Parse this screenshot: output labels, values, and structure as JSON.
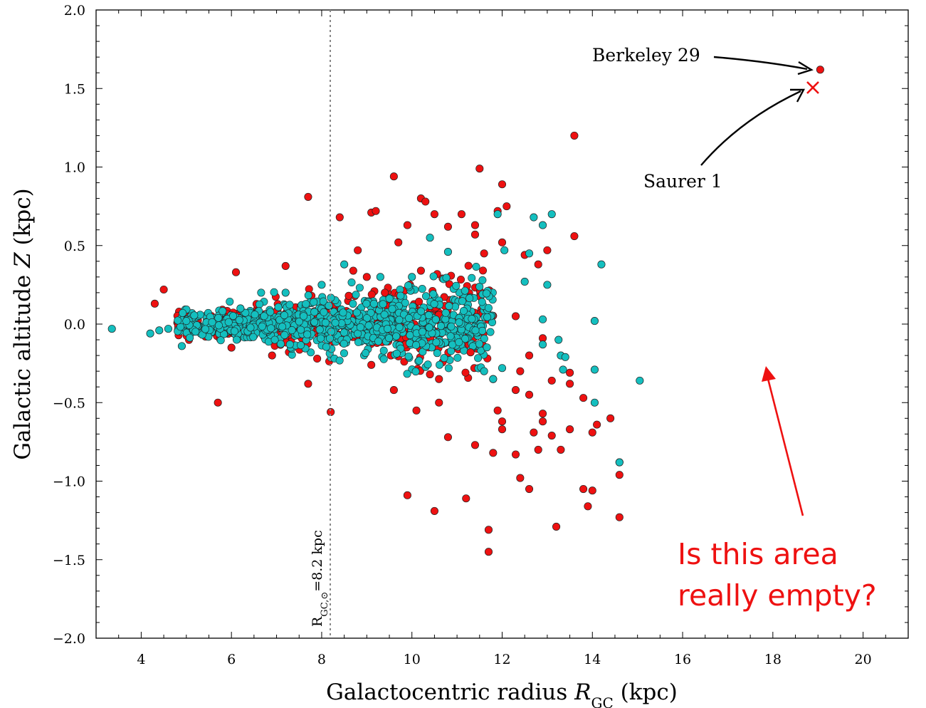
{
  "chart_data": {
    "type": "scatter",
    "xlabel": "Galactocentric radius R_GC (kpc)",
    "ylabel": "Galactic altitude Z (kpc)",
    "xlim": [
      3,
      21
    ],
    "ylim": [
      -2.0,
      2.0
    ],
    "x_ticks": [
      "4",
      "6",
      "8",
      "10",
      "12",
      "14",
      "16",
      "18",
      "20"
    ],
    "y_ticks": [
      "2.0",
      "1.5",
      "1.0",
      "0.5",
      "0.0",
      "−0.5",
      "−1.0",
      "−1.5",
      "−2.0"
    ],
    "grid": false,
    "reference_line": {
      "x": 8.2,
      "label": "R_GC,⊙=8.2 kpc"
    },
    "series": [
      {
        "color": "#ee1111",
        "points": [
          [
            5.7,
            -0.5
          ],
          [
            4.5,
            0.22
          ],
          [
            4.3,
            0.13
          ],
          [
            7.7,
            0.81
          ],
          [
            8.2,
            -0.56
          ],
          [
            8.4,
            0.68
          ],
          [
            9.6,
            0.94
          ],
          [
            10.2,
            0.8
          ],
          [
            10.3,
            0.78
          ],
          [
            11.5,
            0.99
          ],
          [
            12.0,
            0.89
          ],
          [
            13.6,
            1.2
          ],
          [
            9.1,
            0.71
          ],
          [
            9.2,
            0.72
          ],
          [
            10.5,
            0.7
          ],
          [
            10.8,
            0.62
          ],
          [
            11.1,
            0.7
          ],
          [
            11.4,
            0.63
          ],
          [
            11.9,
            0.72
          ],
          [
            12.1,
            0.75
          ],
          [
            12.5,
            0.44
          ],
          [
            13.6,
            0.56
          ],
          [
            12.8,
            0.38
          ],
          [
            13.0,
            0.47
          ],
          [
            6.1,
            0.33
          ],
          [
            7.2,
            0.37
          ],
          [
            8.8,
            0.47
          ],
          [
            9.7,
            0.52
          ],
          [
            9.9,
            0.63
          ],
          [
            11.4,
            0.57
          ],
          [
            10.6,
            -0.5
          ],
          [
            11.4,
            -0.77
          ],
          [
            12.0,
            -0.67
          ],
          [
            12.8,
            -0.8
          ],
          [
            13.5,
            -0.67
          ],
          [
            14.4,
            -0.6
          ],
          [
            14.6,
            -0.88
          ],
          [
            14.6,
            -0.96
          ],
          [
            14.6,
            -1.23
          ],
          [
            14.0,
            -1.06
          ],
          [
            13.3,
            -0.8
          ],
          [
            12.4,
            -0.98
          ],
          [
            12.6,
            -1.05
          ],
          [
            11.8,
            -0.82
          ],
          [
            11.7,
            -1.31
          ],
          [
            11.7,
            -1.45
          ],
          [
            10.5,
            -1.19
          ],
          [
            9.9,
            -1.09
          ],
          [
            11.2,
            -1.11
          ],
          [
            13.2,
            -1.29
          ],
          [
            13.9,
            -1.16
          ],
          [
            13.8,
            -1.05
          ],
          [
            14.0,
            -0.69
          ],
          [
            13.8,
            -0.47
          ],
          [
            12.7,
            -0.69
          ],
          [
            13.1,
            -0.71
          ],
          [
            10.8,
            -0.72
          ],
          [
            10.1,
            -0.55
          ],
          [
            11.9,
            -0.55
          ],
          [
            12.6,
            -0.45
          ],
          [
            12.3,
            -0.83
          ],
          [
            12.0,
            -0.62
          ],
          [
            12.3,
            -0.42
          ],
          [
            13.1,
            -0.36
          ],
          [
            12.9,
            -0.57
          ],
          [
            13.5,
            -0.38
          ],
          [
            7.7,
            -0.38
          ],
          [
            9.1,
            -0.26
          ],
          [
            10.6,
            -0.35
          ],
          [
            11.8,
            -0.35
          ],
          [
            13.5,
            -0.31
          ],
          [
            12.6,
            -0.2
          ],
          [
            12.9,
            -0.09
          ],
          [
            12.3,
            0.05
          ],
          [
            7.9,
            -0.22
          ],
          [
            6.9,
            -0.2
          ],
          [
            6.0,
            -0.15
          ],
          [
            9.6,
            -0.42
          ],
          [
            10.4,
            -0.32
          ],
          [
            8.7,
            0.34
          ],
          [
            8.6,
            0.18
          ],
          [
            9.4,
            0.2
          ],
          [
            10.2,
            0.34
          ],
          [
            11.6,
            0.45
          ],
          [
            12.0,
            0.52
          ],
          [
            12.9,
            -0.62
          ],
          [
            14.1,
            -0.64
          ],
          [
            9.0,
            0.3
          ],
          [
            11.3,
            -0.18
          ],
          [
            12.4,
            -0.3
          ],
          [
            19.05,
            1.62
          ]
        ]
      },
      {
        "color": "#14bfbf",
        "points": [
          [
            3.35,
            -0.03
          ],
          [
            4.2,
            -0.06
          ],
          [
            4.4,
            -0.04
          ],
          [
            4.6,
            -0.03
          ],
          [
            4.9,
            -0.14
          ],
          [
            15.05,
            -0.36
          ],
          [
            14.6,
            -0.88
          ],
          [
            14.2,
            0.38
          ],
          [
            14.05,
            0.02
          ],
          [
            14.05,
            -0.29
          ],
          [
            14.05,
            -0.5
          ],
          [
            13.1,
            0.7
          ],
          [
            12.7,
            0.68
          ],
          [
            12.9,
            0.63
          ],
          [
            11.9,
            0.7
          ],
          [
            12.05,
            0.47
          ],
          [
            10.4,
            0.55
          ],
          [
            10.8,
            0.46
          ],
          [
            13.3,
            -0.2
          ],
          [
            13.35,
            -0.29
          ],
          [
            12.9,
            -0.13
          ],
          [
            12.9,
            0.03
          ],
          [
            12.5,
            0.27
          ],
          [
            12.6,
            0.45
          ],
          [
            13.0,
            0.25
          ],
          [
            11.8,
            -0.35
          ],
          [
            11.6,
            -0.3
          ],
          [
            12.0,
            -0.28
          ],
          [
            13.4,
            -0.21
          ],
          [
            13.25,
            -0.1
          ],
          [
            6.2,
            0.1
          ],
          [
            7.2,
            0.2
          ],
          [
            8.0,
            0.25
          ],
          [
            8.5,
            0.38
          ],
          [
            9.3,
            0.3
          ],
          [
            10.0,
            0.3
          ]
        ]
      }
    ],
    "annotations": [
      {
        "text": "Berkeley 29",
        "points_to": [
          19.05,
          1.62
        ]
      },
      {
        "text": "Saurer 1",
        "points_to": [
          18.85,
          1.49
        ]
      }
    ],
    "cross_marker": {
      "x": 18.85,
      "y": 1.49,
      "color": "#ee1111"
    }
  },
  "overlay": {
    "question_line1": "Is this area",
    "question_line2": "really empty?",
    "arrow_color": "#ee1111"
  }
}
